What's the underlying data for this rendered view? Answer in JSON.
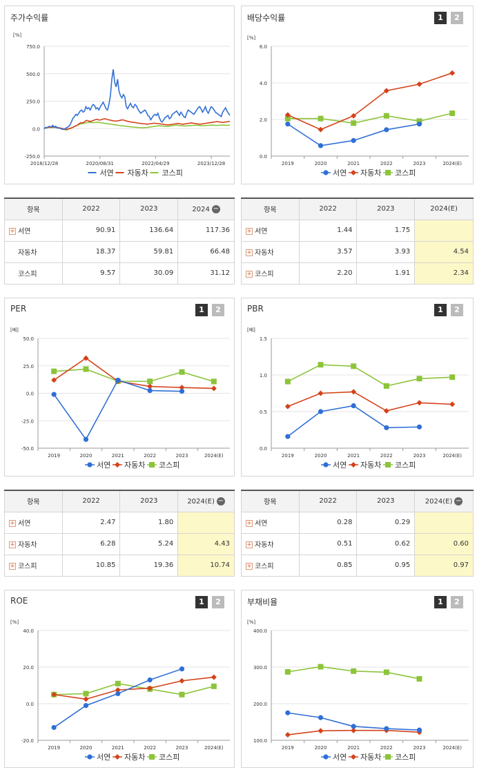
{
  "colors": {
    "seoyeon": "#2f6fd6",
    "auto": "#d4421a",
    "kospi": "#8cc43a"
  },
  "legend_labels": [
    "서연",
    "자동차",
    "코스피"
  ],
  "panels": {
    "stock_return": {
      "title": "주가수익률"
    },
    "dividend": {
      "title": "배당수익률",
      "btn1": "1",
      "btn2": "2"
    },
    "per": {
      "title": "PER",
      "btn1": "1",
      "btn2": "2"
    },
    "pbr": {
      "title": "PBR",
      "btn1": "1",
      "btn2": "2"
    },
    "roe": {
      "title": "ROE",
      "btn1": "1",
      "btn2": "2"
    },
    "debt": {
      "title": "부채비율",
      "btn1": "1",
      "btn2": "2"
    }
  },
  "chart_data": [
    {
      "id": "stock",
      "type": "line",
      "unit": "[%]",
      "yticks": [
        "750.0",
        "500.0",
        "250.0",
        "0.0",
        "-250.0"
      ],
      "ylim": [
        -250,
        750
      ],
      "xticks": [
        "2018/12/28",
        "2020/08/31",
        "2022/04/29",
        "2023/12/28"
      ],
      "series": [
        {
          "name": "서연",
          "values": [
            0,
            12,
            8,
            18,
            20,
            14,
            30,
            12,
            22,
            8,
            5,
            3,
            -2,
            -8,
            -5,
            5,
            10,
            20,
            35,
            65,
            95,
            110,
            130,
            120,
            140,
            160,
            170,
            150,
            160,
            200,
            180,
            190,
            170,
            200,
            220,
            210,
            180,
            190,
            170,
            200,
            220,
            240,
            210,
            180,
            170,
            220,
            300,
            450,
            540,
            420,
            380,
            450,
            340,
            300,
            280,
            310,
            290,
            200,
            180,
            210,
            230,
            200,
            190,
            220,
            210,
            180,
            160,
            140,
            150,
            160,
            170,
            150,
            120,
            110,
            80,
            100,
            120,
            130,
            120,
            140,
            100,
            70,
            60,
            80,
            100,
            110,
            120,
            90,
            100,
            130,
            140,
            150,
            160,
            140,
            120,
            150,
            130,
            110,
            100,
            140,
            170,
            160,
            150,
            140,
            130,
            150,
            170,
            190,
            200,
            180,
            150,
            170,
            200,
            160,
            140,
            170,
            200,
            190,
            170,
            150,
            140,
            130,
            120,
            110,
            150,
            170,
            190,
            160,
            140,
            120
          ]
        },
        {
          "name": "자동차",
          "values": [
            0,
            8,
            10,
            12,
            14,
            10,
            16,
            12,
            14,
            10,
            8,
            6,
            4,
            0,
            -5,
            -8,
            -6,
            -2,
            2,
            6,
            12,
            18,
            25,
            30,
            40,
            50,
            55,
            50,
            60,
            70,
            75,
            70,
            65,
            68,
            72,
            78,
            82,
            85,
            80,
            78,
            82,
            85,
            90,
            88,
            84,
            80,
            78,
            75,
            72,
            70,
            68,
            70,
            72,
            75,
            78,
            80,
            76,
            72,
            68,
            65,
            62,
            60,
            58,
            56,
            55,
            52,
            50,
            48,
            46,
            45,
            44,
            42,
            40,
            42,
            44,
            46,
            48,
            50,
            48,
            46,
            45,
            44,
            42,
            40,
            38,
            36,
            35,
            34,
            36,
            38,
            40,
            42,
            44,
            46,
            45,
            44,
            42,
            40,
            42,
            44,
            46,
            48,
            50,
            52,
            50,
            48,
            46,
            44,
            42,
            40,
            42,
            44,
            46,
            48,
            50,
            52,
            54,
            56,
            58,
            60,
            62,
            64,
            62,
            60,
            58,
            56,
            58,
            60,
            62,
            64,
            66
          ]
        },
        {
          "name": "코스피",
          "values": [
            0,
            5,
            8,
            10,
            12,
            10,
            12,
            10,
            8,
            6,
            5,
            3,
            0,
            -5,
            -10,
            -12,
            -8,
            -2,
            4,
            10,
            16,
            22,
            28,
            34,
            40,
            44,
            48,
            50,
            52,
            55,
            56,
            58,
            56,
            54,
            55,
            57,
            58,
            56,
            54,
            52,
            50,
            48,
            46,
            44,
            42,
            40,
            38,
            36,
            34,
            32,
            30,
            28,
            26,
            25,
            24,
            22,
            20,
            18,
            16,
            15,
            14,
            13,
            12,
            10,
            10,
            9,
            8,
            8,
            9,
            10,
            12,
            14,
            16,
            18,
            20,
            22,
            24,
            26,
            25,
            24,
            23,
            22,
            21,
            20,
            22,
            24,
            26,
            28,
            30,
            32,
            30,
            28,
            27,
            26,
            25,
            24,
            25,
            26,
            27,
            28,
            29,
            30,
            31,
            30,
            29,
            28,
            27,
            26,
            27,
            28,
            29,
            30,
            31,
            32,
            31,
            30,
            29,
            30,
            31,
            32,
            33,
            32,
            31,
            30,
            31,
            32
          ]
        }
      ]
    },
    {
      "id": "dividend",
      "type": "line",
      "unit": "[%]",
      "categories": [
        "2019",
        "2020",
        "2021",
        "2022",
        "2023",
        "2024(E)"
      ],
      "yticks": [
        "6.0",
        "4.0",
        "2.0",
        "0.0"
      ],
      "ylim": [
        0,
        6
      ],
      "series": [
        {
          "name": "서연",
          "values": [
            1.75,
            0.57,
            0.85,
            1.44,
            1.75,
            null
          ]
        },
        {
          "name": "자동차",
          "values": [
            2.25,
            1.45,
            2.2,
            3.57,
            3.93,
            4.54
          ]
        },
        {
          "name": "코스피",
          "values": [
            2.05,
            2.05,
            1.8,
            2.2,
            1.91,
            2.34
          ]
        }
      ]
    },
    {
      "id": "per",
      "type": "line",
      "unit": "[배]",
      "categories": [
        "2019",
        "2020",
        "2021",
        "2022",
        "2023",
        "2024(E)"
      ],
      "yticks": [
        "50.0",
        "25.0",
        "0.0",
        "-25.0",
        "-50.0"
      ],
      "ylim": [
        -50,
        50
      ],
      "series": [
        {
          "name": "서연",
          "values": [
            -1,
            -42,
            12,
            2.47,
            1.8,
            null
          ]
        },
        {
          "name": "자동차",
          "values": [
            12,
            32,
            11,
            6.28,
            5.24,
            4.43
          ]
        },
        {
          "name": "코스피",
          "values": [
            20,
            22,
            11,
            10.85,
            19.36,
            10.74
          ]
        }
      ]
    },
    {
      "id": "pbr",
      "type": "line",
      "unit": "[배]",
      "categories": [
        "2019",
        "2020",
        "2021",
        "2022",
        "2023",
        "2024(E)"
      ],
      "yticks": [
        "1.5",
        "1.0",
        "0.5",
        "0.0"
      ],
      "ylim": [
        0,
        1.5
      ],
      "series": [
        {
          "name": "서연",
          "values": [
            0.16,
            0.5,
            0.58,
            0.28,
            0.29,
            null
          ]
        },
        {
          "name": "자동차",
          "values": [
            0.57,
            0.75,
            0.77,
            0.51,
            0.62,
            0.6
          ]
        },
        {
          "name": "코스피",
          "values": [
            0.91,
            1.14,
            1.12,
            0.85,
            0.95,
            0.97
          ]
        }
      ]
    },
    {
      "id": "roe",
      "type": "line",
      "unit": "[%]",
      "categories": [
        "2019",
        "2020",
        "2021",
        "2022",
        "2023",
        "2024(E)"
      ],
      "yticks": [
        "40.0",
        "20.0",
        "0.0",
        "-20.0"
      ],
      "ylim": [
        -20,
        40
      ],
      "series": [
        {
          "name": "서연",
          "values": [
            -13,
            -1,
            5.5,
            13,
            19,
            null
          ]
        },
        {
          "name": "자동차",
          "values": [
            5,
            2.5,
            7.5,
            8.5,
            12.5,
            14.5
          ]
        },
        {
          "name": "코스피",
          "values": [
            5,
            5.5,
            11,
            8,
            5,
            9.5
          ]
        }
      ]
    },
    {
      "id": "debt",
      "type": "line",
      "unit": "[%]",
      "categories": [
        "2019",
        "2020",
        "2021",
        "2022",
        "2023",
        "2024(E)"
      ],
      "yticks": [
        "400.0",
        "300.0",
        "200.0",
        "100.0"
      ],
      "ylim": [
        100,
        400
      ],
      "series": [
        {
          "name": "서연",
          "values": [
            175,
            162,
            138,
            132,
            128,
            null
          ]
        },
        {
          "name": "자동차",
          "values": [
            115,
            126,
            127,
            127,
            122,
            null
          ]
        },
        {
          "name": "코스피",
          "values": [
            287,
            301,
            289,
            286,
            268,
            null
          ]
        }
      ]
    }
  ],
  "tables": {
    "stock": {
      "header": [
        "항목",
        "2022",
        "2023",
        "2024"
      ],
      "rows": [
        [
          "서연",
          "90.91",
          "136.64",
          "117.36"
        ],
        [
          "자동차",
          "18.37",
          "59.81",
          "66.48"
        ],
        [
          "코스피",
          "9.57",
          "30.09",
          "31.12"
        ]
      ]
    },
    "dividend": {
      "header": [
        "항목",
        "2022",
        "2023",
        "2024(E)"
      ],
      "rows": [
        [
          "서연",
          "1.44",
          "1.75",
          ""
        ],
        [
          "자동차",
          "3.57",
          "3.93",
          "4.54"
        ],
        [
          "코스피",
          "2.20",
          "1.91",
          "2.34"
        ]
      ]
    },
    "per": {
      "header": [
        "항목",
        "2022",
        "2023",
        "2024(E)"
      ],
      "rows": [
        [
          "서연",
          "2.47",
          "1.80",
          ""
        ],
        [
          "자동차",
          "6.28",
          "5.24",
          "4.43"
        ],
        [
          "코스피",
          "10.85",
          "19.36",
          "10.74"
        ]
      ]
    },
    "pbr": {
      "header": [
        "항목",
        "2022",
        "2023",
        "2024(E)"
      ],
      "rows": [
        [
          "서연",
          "0.28",
          "0.29",
          ""
        ],
        [
          "자동차",
          "0.51",
          "0.62",
          "0.60"
        ],
        [
          "코스피",
          "0.85",
          "0.95",
          "0.97"
        ]
      ]
    }
  }
}
